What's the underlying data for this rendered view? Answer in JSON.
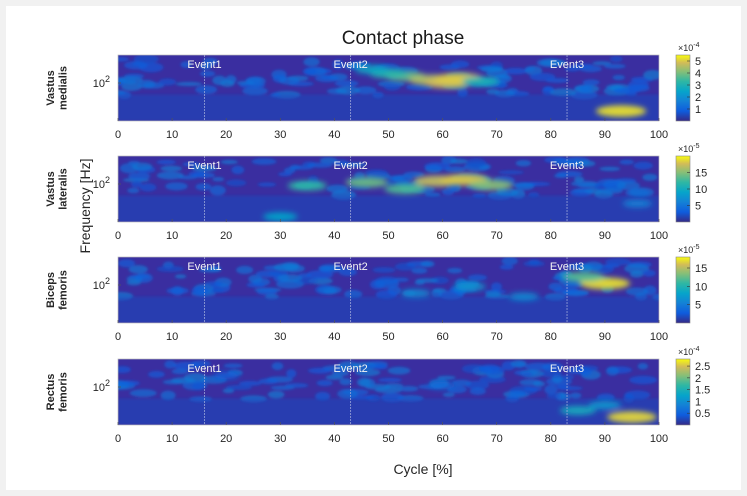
{
  "chart_data": {
    "type": "heatmap",
    "title": "Contact phase",
    "xlabel": "Cycle [%]",
    "ylabel": "Frequency [Hz]",
    "xlim": [
      0,
      100
    ],
    "xticks": [
      "0",
      "10",
      "20",
      "30",
      "40",
      "50",
      "60",
      "70",
      "80",
      "90",
      "100"
    ],
    "ytick": "10",
    "ytick_exp": "2",
    "events": [
      {
        "label": "Event1",
        "x": 16
      },
      {
        "label": "Event2",
        "x": 43
      },
      {
        "label": "Event3",
        "x": 83
      }
    ],
    "panels": [
      {
        "muscle": [
          "Vastus",
          "medialis"
        ],
        "colorbar": {
          "multiplier": "×10",
          "exponent": "-4",
          "ticks": [
            "5",
            "4",
            "3",
            "2",
            "1"
          ],
          "max": 5.5
        },
        "hotspots": [
          {
            "x": 53,
            "f": 0.32,
            "v": 3.8
          },
          {
            "x": 58,
            "f": 0.38,
            "v": 4.5
          },
          {
            "x": 61,
            "f": 0.42,
            "v": 4.8
          },
          {
            "x": 63,
            "f": 0.36,
            "v": 5.0
          },
          {
            "x": 50,
            "f": 0.28,
            "v": 3.2
          },
          {
            "x": 47,
            "f": 0.22,
            "v": 2.6
          },
          {
            "x": 67,
            "f": 0.4,
            "v": 3.0
          },
          {
            "x": 93,
            "f": 0.85,
            "v": 5.2
          }
        ]
      },
      {
        "muscle": [
          "Vastus",
          "lateralis"
        ],
        "colorbar": {
          "multiplier": "×10",
          "exponent": "-5",
          "ticks": [
            "15",
            "10",
            "5"
          ],
          "max": 20
        },
        "hotspots": [
          {
            "x": 35,
            "f": 0.45,
            "v": 12
          },
          {
            "x": 46,
            "f": 0.4,
            "v": 14
          },
          {
            "x": 53,
            "f": 0.5,
            "v": 13
          },
          {
            "x": 59,
            "f": 0.38,
            "v": 17
          },
          {
            "x": 64,
            "f": 0.36,
            "v": 18
          },
          {
            "x": 69,
            "f": 0.44,
            "v": 15
          },
          {
            "x": 30,
            "f": 0.92,
            "v": 9
          },
          {
            "x": 96,
            "f": 0.72,
            "v": 6
          }
        ]
      },
      {
        "muscle": [
          "Biceps",
          "femoris"
        ],
        "colorbar": {
          "multiplier": "×10",
          "exponent": "-5",
          "ticks": [
            "15",
            "10",
            "5"
          ],
          "max": 18
        },
        "hotspots": [
          {
            "x": 90,
            "f": 0.4,
            "v": 17
          },
          {
            "x": 86,
            "f": 0.3,
            "v": 12
          },
          {
            "x": 65,
            "f": 0.45,
            "v": 7
          },
          {
            "x": 55,
            "f": 0.55,
            "v": 6
          },
          {
            "x": 75,
            "f": 0.6,
            "v": 6
          }
        ]
      },
      {
        "muscle": [
          "Rectus",
          "femoris"
        ],
        "colorbar": {
          "multiplier": "×10",
          "exponent": "-4",
          "ticks": [
            "2.5",
            "2",
            "1.5",
            "1",
            "0.5"
          ],
          "max": 2.8
        },
        "hotspots": [
          {
            "x": 95,
            "f": 0.88,
            "v": 2.6
          },
          {
            "x": 85,
            "f": 0.78,
            "v": 1.4
          },
          {
            "x": 90,
            "f": 0.7,
            "v": 1.1
          },
          {
            "x": 60,
            "f": 0.4,
            "v": 0.6
          },
          {
            "x": 20,
            "f": 0.25,
            "v": 0.5
          }
        ]
      }
    ]
  }
}
